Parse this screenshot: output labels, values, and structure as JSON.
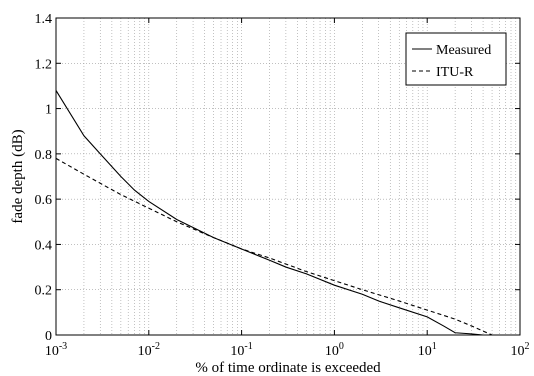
{
  "chart_data": {
    "type": "line",
    "title": "",
    "xlabel": "% of time ordinate is exceeded",
    "ylabel": "fade depth (dB)",
    "x_scale": "log",
    "xlim": [
      0.001,
      100
    ],
    "ylim": [
      0,
      1.4
    ],
    "grid": true,
    "legend_position": "top-right",
    "x_ticks": [
      {
        "base": "10",
        "exp": "-3",
        "value": 0.001
      },
      {
        "base": "10",
        "exp": "-2",
        "value": 0.01
      },
      {
        "base": "10",
        "exp": "-1",
        "value": 0.1
      },
      {
        "base": "10",
        "exp": "0",
        "value": 1
      },
      {
        "base": "10",
        "exp": "1",
        "value": 10
      },
      {
        "base": "10",
        "exp": "2",
        "value": 100
      }
    ],
    "y_ticks": [
      "0",
      "0.2",
      "0.4",
      "0.6",
      "0.8",
      "1",
      "1.2",
      "1.4"
    ],
    "series": [
      {
        "name": "Measured",
        "style": "solid",
        "color": "#000000",
        "x": [
          0.001,
          0.002,
          0.003,
          0.005,
          0.007,
          0.01,
          0.02,
          0.05,
          0.1,
          0.2,
          0.3,
          0.5,
          1,
          2,
          3,
          5,
          10,
          15,
          20,
          30,
          40,
          50
        ],
        "y": [
          1.08,
          0.88,
          0.8,
          0.7,
          0.64,
          0.59,
          0.51,
          0.43,
          0.38,
          0.33,
          0.3,
          0.27,
          0.22,
          0.18,
          0.15,
          0.12,
          0.08,
          0.04,
          0.01,
          0.005,
          0.0,
          0.0
        ]
      },
      {
        "name": "ITU-R",
        "style": "dashed",
        "color": "#000000",
        "x": [
          0.001,
          0.002,
          0.003,
          0.005,
          0.01,
          0.02,
          0.05,
          0.1,
          0.2,
          0.5,
          1,
          2,
          5,
          10,
          20,
          30,
          50
        ],
        "y": [
          0.78,
          0.71,
          0.67,
          0.62,
          0.56,
          0.5,
          0.43,
          0.38,
          0.34,
          0.28,
          0.24,
          0.2,
          0.15,
          0.11,
          0.07,
          0.04,
          0.0
        ]
      }
    ]
  }
}
